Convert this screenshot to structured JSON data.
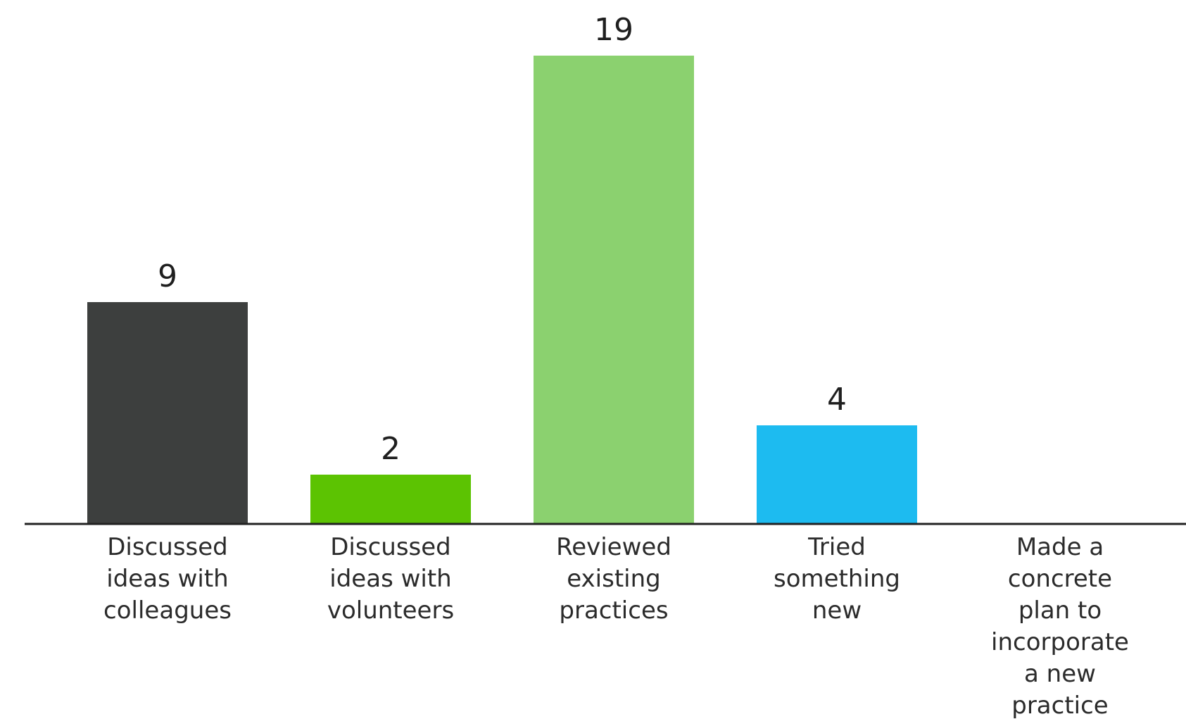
{
  "chart_data": {
    "type": "bar",
    "categories": [
      "Discussed ideas with colleagues",
      "Discussed ideas with volunteers",
      "Reviewed existing practices",
      "Tried something new",
      "Made a concrete plan to incorporate a new practice"
    ],
    "category_lines": [
      [
        "Discussed",
        "ideas with",
        "colleagues"
      ],
      [
        "Discussed",
        "ideas with",
        "volunteers"
      ],
      [
        "Reviewed",
        "existing",
        "practices"
      ],
      [
        "Tried",
        "something",
        "new"
      ],
      [
        "Made a",
        "concrete",
        "plan to",
        "incorporate",
        "a new",
        "practice"
      ]
    ],
    "values": [
      9,
      2,
      19,
      4,
      0
    ],
    "value_labels": [
      "9",
      "2",
      "19",
      "4",
      ""
    ],
    "colors": [
      "#3d3f3e",
      "#5cc302",
      "#8bd16f",
      "#1dbbf0",
      "#ffffff"
    ],
    "axis_color": "#222222",
    "ylim": [
      0,
      19
    ],
    "grid": false,
    "legend": "none",
    "title": "",
    "xlabel": "",
    "ylabel": ""
  }
}
